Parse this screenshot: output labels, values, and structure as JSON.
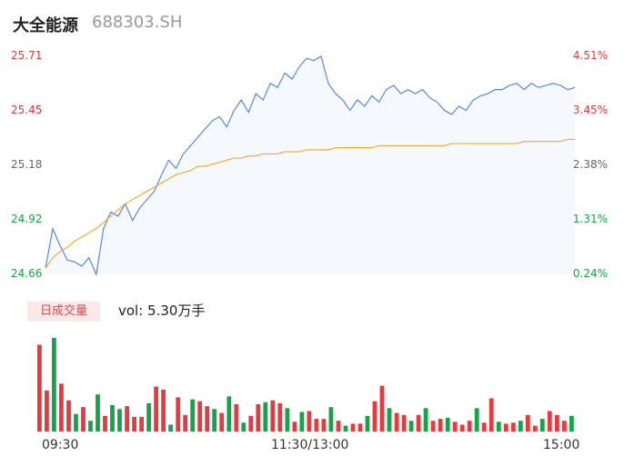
{
  "header": {
    "name": "大全能源",
    "code": "688303.SH"
  },
  "y_axis_left": [
    "25.71",
    "25.45",
    "25.18",
    "24.92",
    "24.66"
  ],
  "y_axis_right": [
    "4.51%",
    "3.45%",
    "2.38%",
    "1.31%",
    "0.24%"
  ],
  "volume": {
    "tag": "日成交量",
    "label": "vol: 5.30万手"
  },
  "x_axis": [
    "09:30",
    "11:30/13:00",
    "15:00"
  ],
  "colors": {
    "price": "#4d7fe0",
    "avg": "#f5a623",
    "up": "#e8393f",
    "down": "#17a34a",
    "area": "#f5f8fd"
  },
  "chart_data": [
    {
      "type": "line",
      "ylim": [
        24.66,
        25.71
      ],
      "y_ticks": [
        25.71,
        25.45,
        25.18,
        24.92,
        24.66
      ],
      "series": [
        {
          "values": [
            24.69,
            24.88,
            24.8,
            24.73,
            24.72,
            24.7,
            24.74,
            24.66,
            24.88,
            24.96,
            24.94,
            25.0,
            24.92,
            24.98,
            25.02,
            25.06,
            25.14,
            25.21,
            25.17,
            25.24,
            25.28,
            25.32,
            25.36,
            25.4,
            25.42,
            25.37,
            25.45,
            25.5,
            25.44,
            25.53,
            25.5,
            25.58,
            25.56,
            25.63,
            25.6,
            25.66,
            25.7,
            25.69,
            25.71,
            25.58,
            25.53,
            25.5,
            25.45,
            25.5,
            25.47,
            25.52,
            25.49,
            25.55,
            25.57,
            25.53,
            25.55,
            25.53,
            25.55,
            25.51,
            25.49,
            25.45,
            25.43,
            25.47,
            25.45,
            25.5,
            25.52,
            25.53,
            25.55,
            25.55,
            25.57,
            25.58,
            25.55,
            25.58,
            25.56,
            25.57,
            25.58,
            25.57,
            25.55,
            25.56
          ]
        },
        {
          "values": [
            24.69,
            24.74,
            24.77,
            24.79,
            24.82,
            24.84,
            24.86,
            24.88,
            24.91,
            24.94,
            24.97,
            25.0,
            25.02,
            25.04,
            25.06,
            25.08,
            25.1,
            25.12,
            25.14,
            25.15,
            25.16,
            25.18,
            25.18,
            25.19,
            25.2,
            25.21,
            25.22,
            25.22,
            25.23,
            25.23,
            25.24,
            25.24,
            25.24,
            25.25,
            25.25,
            25.25,
            25.26,
            25.26,
            25.26,
            25.26,
            25.27,
            25.27,
            25.27,
            25.27,
            25.27,
            25.27,
            25.28,
            25.28,
            25.28,
            25.28,
            25.28,
            25.28,
            25.28,
            25.28,
            25.28,
            25.28,
            25.29,
            25.29,
            25.29,
            25.29,
            25.29,
            25.29,
            25.29,
            25.29,
            25.29,
            25.29,
            25.3,
            25.3,
            25.3,
            25.3,
            25.3,
            25.3,
            25.31,
            25.31
          ]
        }
      ]
    },
    {
      "type": "bar",
      "values": [
        8.9,
        4.2,
        9.6,
        4.9,
        3.2,
        1.8,
        2.5,
        1.1,
        3.8,
        1.6,
        2.7,
        2.3,
        2.6,
        1.5,
        1.5,
        2.9,
        4.6,
        4.3,
        0.7,
        3.5,
        1.7,
        3.3,
        3.1,
        2.6,
        2.3,
        1.9,
        3.6,
        2.8,
        0.9,
        1.6,
        2.8,
        3.0,
        3.2,
        2.9,
        2.4,
        1.0,
        2.0,
        2.1,
        1.3,
        1.3,
        2.5,
        1.1,
        0.6,
        0.8,
        0.8,
        1.6,
        3.1,
        4.7,
        2.4,
        1.9,
        1.7,
        1.1,
        1.7,
        2.4,
        1.1,
        1.3,
        1.4,
        1.0,
        0.7,
        1.1,
        2.4,
        0.9,
        3.4,
        1.0,
        0.8,
        0.9,
        1.1,
        1.7,
        0.6,
        1.3,
        2.1,
        1.7,
        1.1,
        1.6
      ],
      "directions": [
        "up",
        "up",
        "down",
        "up",
        "up",
        "down",
        "up",
        "down",
        "down",
        "up",
        "down",
        "down",
        "up",
        "up",
        "up",
        "down",
        "up",
        "up",
        "down",
        "up",
        "up",
        "down",
        "up",
        "up",
        "down",
        "up",
        "down",
        "up",
        "down",
        "up",
        "up",
        "down",
        "up",
        "up",
        "down",
        "up",
        "down",
        "up",
        "up",
        "up",
        "down",
        "up",
        "down",
        "up",
        "up",
        "down",
        "up",
        "up",
        "down",
        "up",
        "up",
        "down",
        "up",
        "down",
        "up",
        "up",
        "down",
        "up",
        "up",
        "up",
        "down",
        "up",
        "up",
        "down",
        "up",
        "up",
        "down",
        "up",
        "up",
        "down",
        "up",
        "up",
        "up",
        "down"
      ]
    }
  ]
}
